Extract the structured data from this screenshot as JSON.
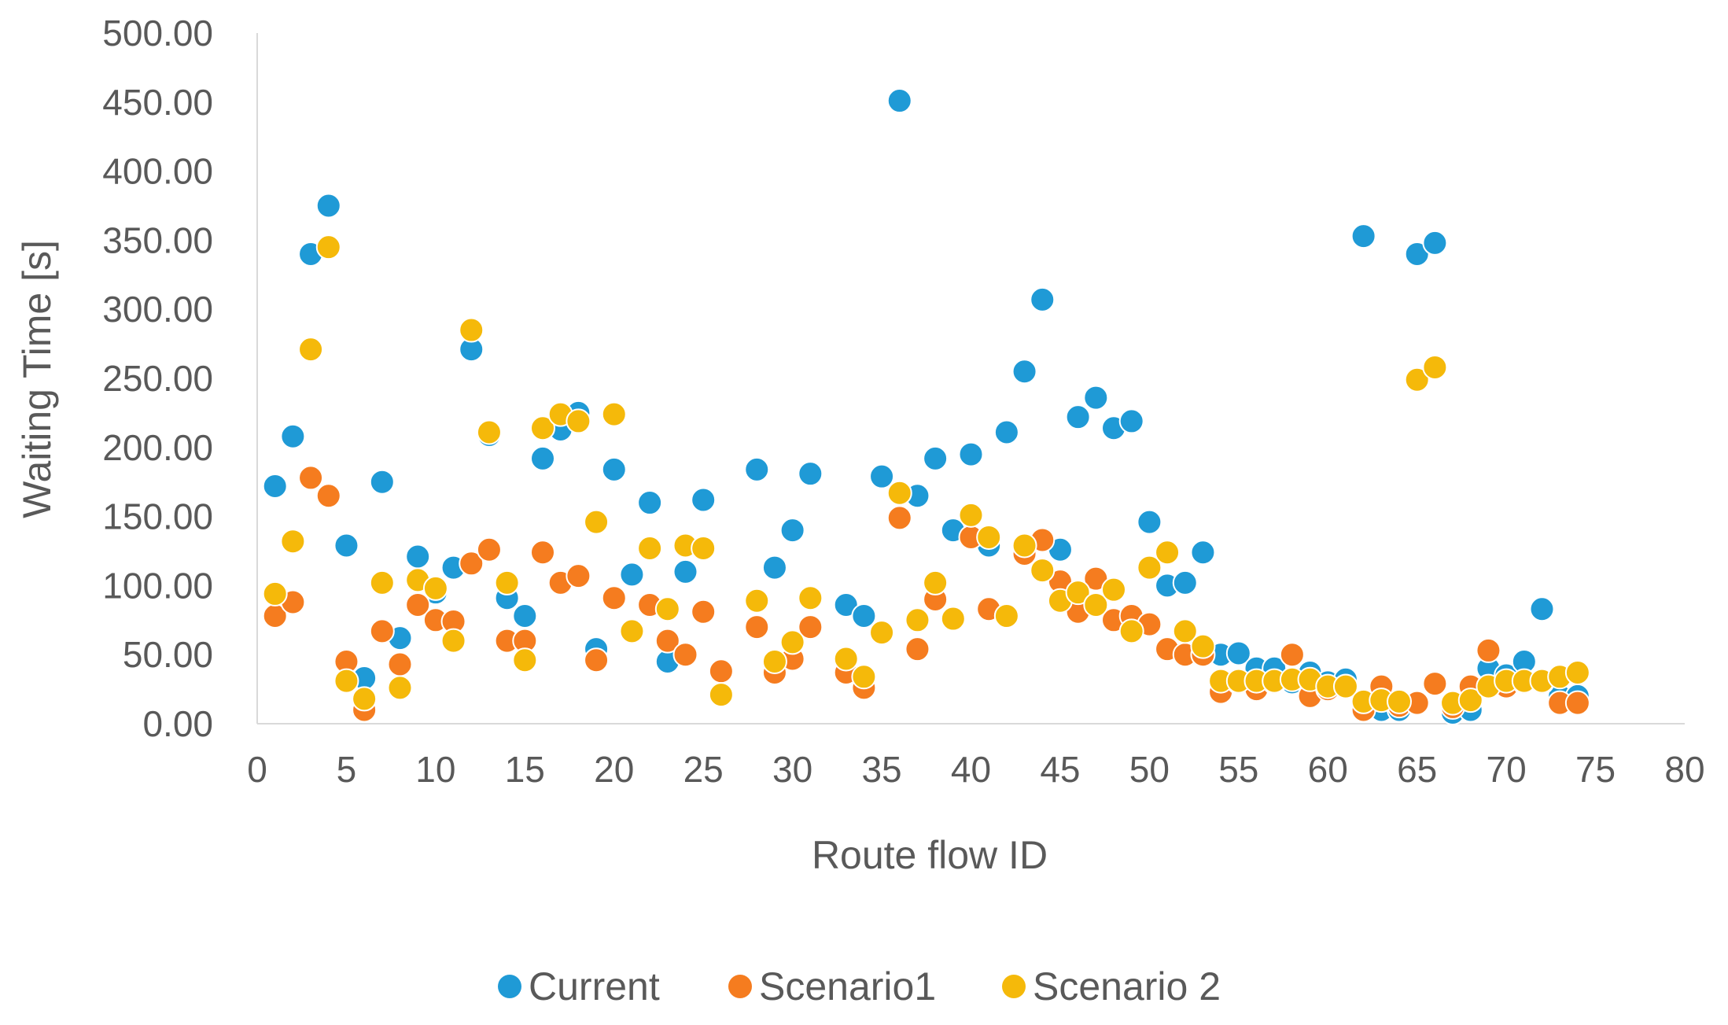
{
  "chart_data": {
    "type": "scatter",
    "title": "",
    "xlabel": "Route flow ID",
    "ylabel": "Waiting Time [s]",
    "xlim": [
      0,
      80
    ],
    "ylim": [
      0,
      500
    ],
    "xticks": [
      0,
      5,
      10,
      15,
      20,
      25,
      30,
      35,
      40,
      45,
      50,
      55,
      60,
      65,
      70,
      75,
      80
    ],
    "yticks": [
      0,
      50,
      100,
      150,
      200,
      250,
      300,
      350,
      400,
      450,
      500
    ],
    "ytick_labels": [
      "0.00",
      "50.00",
      "100.00",
      "150.00",
      "200.00",
      "250.00",
      "300.00",
      "350.00",
      "400.00",
      "450.00",
      "500.00"
    ],
    "grid": false,
    "legend_position": "bottom",
    "series": [
      {
        "name": "Current",
        "color": "#1f9ad6",
        "points": [
          [
            1,
            172
          ],
          [
            2,
            208
          ],
          [
            3,
            340
          ],
          [
            4,
            375
          ],
          [
            5,
            129
          ],
          [
            6,
            33
          ],
          [
            7,
            175
          ],
          [
            8,
            62
          ],
          [
            9,
            121
          ],
          [
            10,
            95
          ],
          [
            11,
            113
          ],
          [
            12,
            271
          ],
          [
            13,
            209
          ],
          [
            14,
            91
          ],
          [
            15,
            78
          ],
          [
            16,
            192
          ],
          [
            17,
            213
          ],
          [
            18,
            225
          ],
          [
            19,
            54
          ],
          [
            20,
            184
          ],
          [
            21,
            108
          ],
          [
            22,
            160
          ],
          [
            23,
            45
          ],
          [
            24,
            110
          ],
          [
            25,
            162
          ],
          [
            26,
            39
          ],
          [
            28,
            184
          ],
          [
            29,
            113
          ],
          [
            30,
            140
          ],
          [
            31,
            181
          ],
          [
            33,
            86
          ],
          [
            34,
            78
          ],
          [
            35,
            179
          ],
          [
            36,
            451
          ],
          [
            37,
            165
          ],
          [
            38,
            192
          ],
          [
            39,
            140
          ],
          [
            40,
            195
          ],
          [
            41,
            129
          ],
          [
            42,
            211
          ],
          [
            43,
            255
          ],
          [
            44,
            307
          ],
          [
            45,
            126
          ],
          [
            46,
            222
          ],
          [
            47,
            236
          ],
          [
            48,
            214
          ],
          [
            49,
            219
          ],
          [
            50,
            146
          ],
          [
            51,
            100
          ],
          [
            52,
            102
          ],
          [
            53,
            124
          ],
          [
            54,
            50
          ],
          [
            55,
            51
          ],
          [
            56,
            40
          ],
          [
            57,
            40
          ],
          [
            58,
            30
          ],
          [
            59,
            37
          ],
          [
            60,
            30
          ],
          [
            61,
            32
          ],
          [
            62,
            353
          ],
          [
            63,
            10
          ],
          [
            64,
            10
          ],
          [
            65,
            340
          ],
          [
            66,
            348
          ],
          [
            67,
            8
          ],
          [
            68,
            10
          ],
          [
            69,
            40
          ],
          [
            70,
            35
          ],
          [
            71,
            45
          ],
          [
            72,
            83
          ],
          [
            73,
            20
          ],
          [
            74,
            20
          ]
        ]
      },
      {
        "name": "Scenario1",
        "color": "#f57c1f",
        "points": [
          [
            1,
            78
          ],
          [
            2,
            88
          ],
          [
            3,
            178
          ],
          [
            4,
            165
          ],
          [
            5,
            45
          ],
          [
            6,
            10
          ],
          [
            7,
            67
          ],
          [
            8,
            43
          ],
          [
            9,
            86
          ],
          [
            10,
            75
          ],
          [
            11,
            74
          ],
          [
            12,
            116
          ],
          [
            13,
            126
          ],
          [
            14,
            60
          ],
          [
            15,
            60
          ],
          [
            16,
            124
          ],
          [
            17,
            102
          ],
          [
            18,
            107
          ],
          [
            19,
            46
          ],
          [
            20,
            91
          ],
          [
            21,
            67
          ],
          [
            22,
            86
          ],
          [
            23,
            60
          ],
          [
            24,
            50
          ],
          [
            25,
            81
          ],
          [
            26,
            38
          ],
          [
            28,
            70
          ],
          [
            29,
            37
          ],
          [
            30,
            47
          ],
          [
            31,
            70
          ],
          [
            33,
            37
          ],
          [
            34,
            26
          ],
          [
            35,
            65
          ],
          [
            36,
            149
          ],
          [
            37,
            54
          ],
          [
            38,
            90
          ],
          [
            39,
            77
          ],
          [
            40,
            135
          ],
          [
            41,
            83
          ],
          [
            42,
            78
          ],
          [
            43,
            123
          ],
          [
            44,
            133
          ],
          [
            45,
            103
          ],
          [
            46,
            81
          ],
          [
            47,
            105
          ],
          [
            48,
            75
          ],
          [
            49,
            78
          ],
          [
            50,
            72
          ],
          [
            51,
            54
          ],
          [
            52,
            50
          ],
          [
            53,
            50
          ],
          [
            54,
            23
          ],
          [
            55,
            30
          ],
          [
            56,
            25
          ],
          [
            57,
            30
          ],
          [
            58,
            50
          ],
          [
            59,
            20
          ],
          [
            60,
            25
          ],
          [
            61,
            27
          ],
          [
            62,
            10
          ],
          [
            63,
            27
          ],
          [
            64,
            13
          ],
          [
            65,
            15
          ],
          [
            66,
            29
          ],
          [
            67,
            12
          ],
          [
            68,
            27
          ],
          [
            69,
            53
          ],
          [
            70,
            27
          ],
          [
            71,
            30
          ],
          [
            72,
            30
          ],
          [
            73,
            15
          ],
          [
            74,
            15
          ]
        ]
      },
      {
        "name": "Scenario 2",
        "color": "#f5b90a",
        "points": [
          [
            1,
            94
          ],
          [
            2,
            132
          ],
          [
            3,
            271
          ],
          [
            4,
            345
          ],
          [
            5,
            31
          ],
          [
            6,
            18
          ],
          [
            7,
            102
          ],
          [
            8,
            26
          ],
          [
            9,
            104
          ],
          [
            10,
            98
          ],
          [
            11,
            60
          ],
          [
            12,
            285
          ],
          [
            13,
            211
          ],
          [
            14,
            102
          ],
          [
            15,
            46
          ],
          [
            16,
            214
          ],
          [
            17,
            224
          ],
          [
            18,
            219
          ],
          [
            19,
            146
          ],
          [
            20,
            224
          ],
          [
            21,
            67
          ],
          [
            22,
            127
          ],
          [
            23,
            83
          ],
          [
            24,
            129
          ],
          [
            25,
            127
          ],
          [
            26,
            21
          ],
          [
            28,
            89
          ],
          [
            29,
            45
          ],
          [
            30,
            59
          ],
          [
            31,
            91
          ],
          [
            33,
            47
          ],
          [
            34,
            34
          ],
          [
            35,
            66
          ],
          [
            36,
            167
          ],
          [
            37,
            75
          ],
          [
            38,
            102
          ],
          [
            39,
            76
          ],
          [
            40,
            151
          ],
          [
            41,
            135
          ],
          [
            42,
            78
          ],
          [
            43,
            129
          ],
          [
            44,
            111
          ],
          [
            45,
            89
          ],
          [
            46,
            95
          ],
          [
            47,
            86
          ],
          [
            48,
            97
          ],
          [
            49,
            67
          ],
          [
            50,
            113
          ],
          [
            51,
            124
          ],
          [
            52,
            67
          ],
          [
            53,
            56
          ],
          [
            54,
            31
          ],
          [
            55,
            31
          ],
          [
            56,
            31
          ],
          [
            57,
            31
          ],
          [
            58,
            32
          ],
          [
            59,
            32
          ],
          [
            60,
            27
          ],
          [
            61,
            27
          ],
          [
            62,
            16
          ],
          [
            63,
            17
          ],
          [
            64,
            16
          ],
          [
            65,
            249
          ],
          [
            66,
            258
          ],
          [
            67,
            15
          ],
          [
            68,
            17
          ],
          [
            69,
            27
          ],
          [
            70,
            31
          ],
          [
            71,
            31
          ],
          [
            72,
            31
          ],
          [
            73,
            34
          ],
          [
            74,
            37
          ]
        ]
      }
    ]
  }
}
